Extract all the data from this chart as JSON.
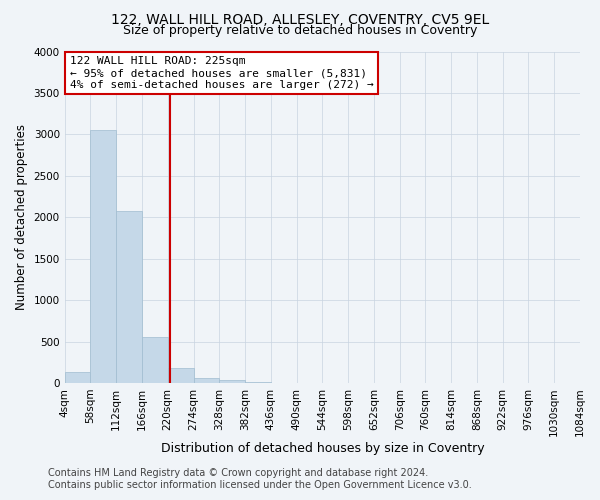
{
  "title": "122, WALL HILL ROAD, ALLESLEY, COVENTRY, CV5 9EL",
  "subtitle": "Size of property relative to detached houses in Coventry",
  "xlabel": "Distribution of detached houses by size in Coventry",
  "ylabel": "Number of detached properties",
  "footer_line1": "Contains HM Land Registry data © Crown copyright and database right 2024.",
  "footer_line2": "Contains public sector information licensed under the Open Government Licence v3.0.",
  "bin_labels": [
    "4sqm",
    "58sqm",
    "112sqm",
    "166sqm",
    "220sqm",
    "274sqm",
    "328sqm",
    "382sqm",
    "436sqm",
    "490sqm",
    "544sqm",
    "598sqm",
    "652sqm",
    "706sqm",
    "760sqm",
    "814sqm",
    "868sqm",
    "922sqm",
    "976sqm",
    "1030sqm",
    "1084sqm"
  ],
  "bin_edges": [
    4,
    58,
    112,
    166,
    220,
    274,
    328,
    382,
    436,
    490,
    544,
    598,
    652,
    706,
    760,
    814,
    868,
    922,
    976,
    1030,
    1084
  ],
  "bar_heights": [
    130,
    3055,
    2070,
    560,
    185,
    55,
    35,
    10,
    5,
    2,
    1,
    1,
    0,
    0,
    0,
    0,
    0,
    0,
    0,
    0
  ],
  "bar_color": "#c5d8e8",
  "bar_edge_color": "#a0bcd0",
  "grid_color": "#c8d4e0",
  "bg_color": "#f0f4f8",
  "property_size": 225,
  "vline_color": "#cc0000",
  "annotation_line1": "122 WALL HILL ROAD: 225sqm",
  "annotation_line2": "← 95% of detached houses are smaller (5,831)",
  "annotation_line3": "4% of semi-detached houses are larger (272) →",
  "annotation_box_color": "#cc0000",
  "annotation_box_bg": "#ffffff",
  "ylim": [
    0,
    4000
  ],
  "xlim": [
    4,
    1084
  ],
  "title_fontsize": 10,
  "subtitle_fontsize": 9,
  "xlabel_fontsize": 9,
  "ylabel_fontsize": 8.5,
  "tick_fontsize": 7.5,
  "annotation_fontsize": 8,
  "footer_fontsize": 7
}
